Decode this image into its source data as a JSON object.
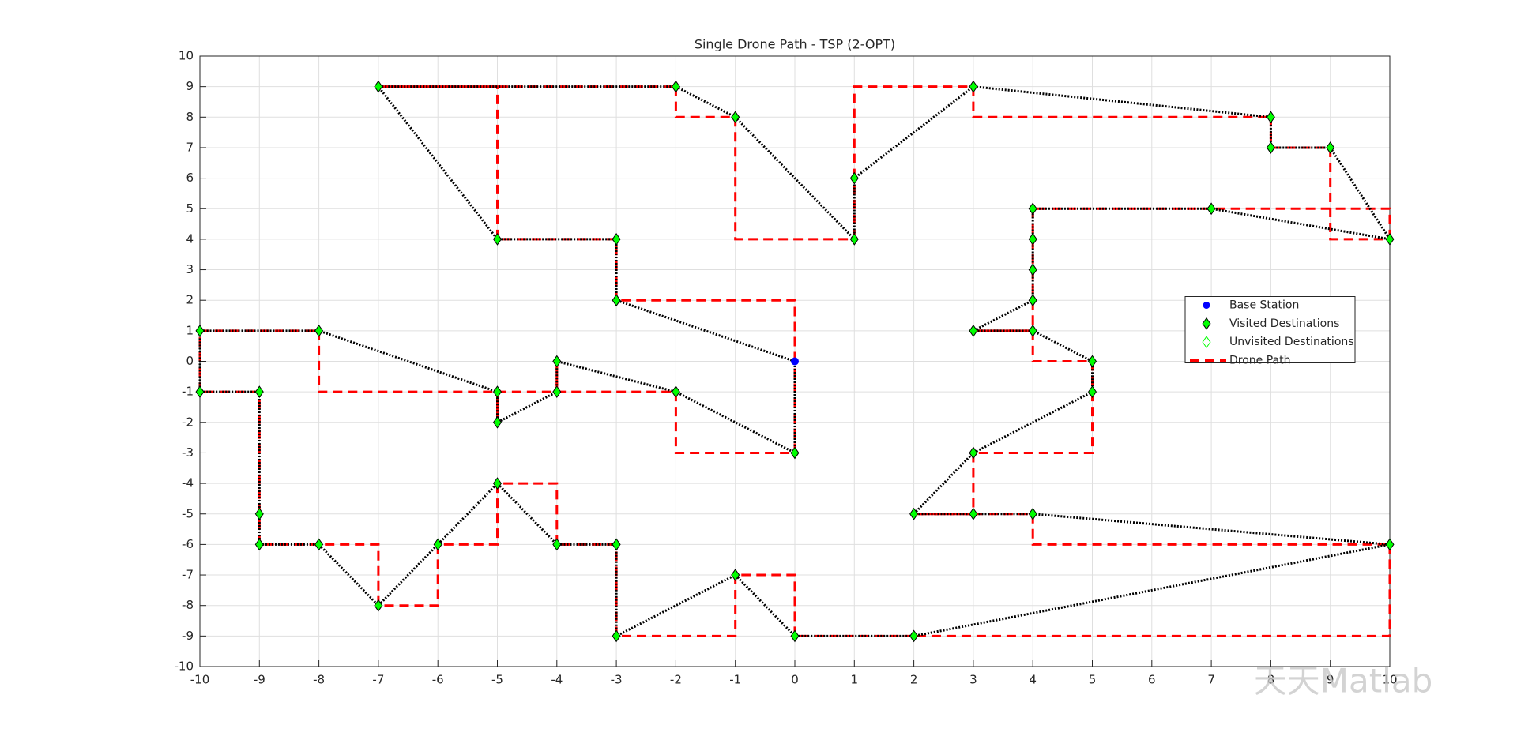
{
  "chart_data": {
    "type": "scatter",
    "title": "Single Drone Path - TSP (2-OPT)",
    "xlim": [
      -10,
      10
    ],
    "ylim": [
      -10,
      10
    ],
    "xticks": [
      -10,
      -9,
      -8,
      -7,
      -6,
      -5,
      -4,
      -3,
      -2,
      -1,
      0,
      1,
      2,
      3,
      4,
      5,
      6,
      7,
      8,
      9,
      10
    ],
    "yticks": [
      -10,
      -9,
      -8,
      -7,
      -6,
      -5,
      -4,
      -3,
      -2,
      -1,
      0,
      1,
      2,
      3,
      4,
      5,
      6,
      7,
      8,
      9,
      10
    ],
    "grid": true,
    "legend": "east",
    "tour_color": "#000000",
    "series": [
      {
        "name": "Base Station",
        "color": "#0000ff",
        "x": [
          0
        ],
        "y": [
          0
        ]
      },
      {
        "name": "Visited Destinations",
        "color": "#00ff00",
        "x": [
          -3,
          -3,
          -5,
          -7,
          -2,
          -1,
          1,
          1,
          3,
          8,
          8,
          9,
          10,
          7,
          4,
          4,
          4,
          4,
          3,
          4,
          5,
          5,
          3,
          2,
          3,
          4,
          10,
          2,
          0,
          -1,
          -3,
          -3,
          -4,
          -5,
          -6,
          -7,
          -8,
          -9,
          -9,
          -9,
          -10,
          -10,
          -8,
          -5,
          -5,
          -4,
          -4,
          -2,
          0
        ],
        "y": [
          2,
          4,
          4,
          9,
          9,
          8,
          4,
          6,
          9,
          8,
          7,
          7,
          4,
          5,
          5,
          4,
          3,
          2,
          1,
          1,
          0,
          -1,
          -3,
          -5,
          -5,
          -5,
          -6,
          -9,
          -9,
          -7,
          -9,
          -6,
          -6,
          -4,
          -6,
          -8,
          -6,
          -6,
          -5,
          -1,
          -1,
          1,
          1,
          -1,
          -2,
          -1,
          0,
          -1,
          -3
        ]
      },
      {
        "name": "Unvisited Destinations",
        "color": "#00ff00",
        "x": [],
        "y": []
      },
      {
        "name": "Drone Path",
        "color": "#ff0000",
        "x": [
          0,
          -3,
          -3,
          -5,
          -7,
          -2,
          -1,
          1,
          1,
          3,
          8,
          8,
          9,
          10,
          7,
          4,
          4,
          4,
          4,
          3,
          4,
          5,
          5,
          3,
          2,
          3,
          4,
          10,
          2,
          0,
          -1,
          -3,
          -3,
          -4,
          -5,
          -6,
          -7,
          -8,
          -9,
          -9,
          -9,
          -10,
          -10,
          -8,
          -5,
          -5,
          -4,
          -4,
          -2,
          0,
          0
        ],
        "y": [
          0,
          2,
          4,
          4,
          9,
          9,
          8,
          4,
          6,
          9,
          8,
          7,
          7,
          4,
          5,
          5,
          4,
          3,
          2,
          1,
          1,
          0,
          -1,
          -3,
          -5,
          -5,
          -5,
          -6,
          -9,
          -9,
          -7,
          -9,
          -6,
          -6,
          -4,
          -6,
          -8,
          -6,
          -6,
          -5,
          -1,
          -1,
          1,
          1,
          -1,
          -2,
          -1,
          0,
          -1,
          -3,
          0
        ]
      }
    ]
  },
  "watermark": "天天Matlab"
}
